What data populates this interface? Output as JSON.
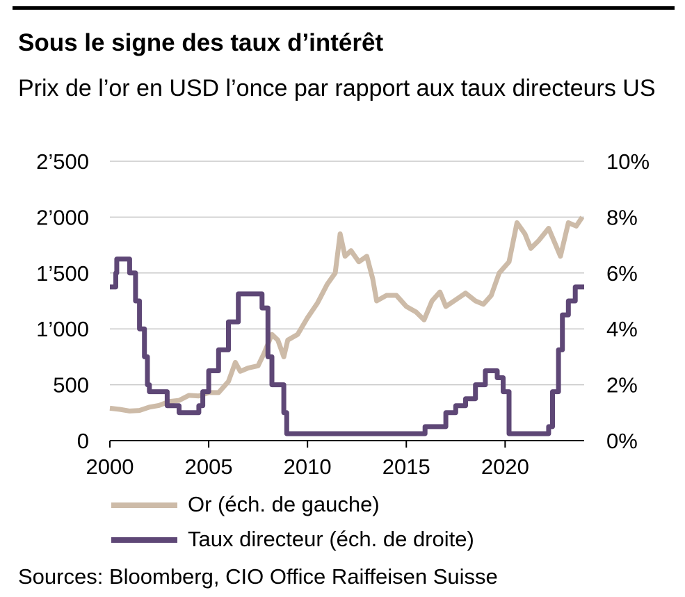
{
  "title": "Sous le signe des taux d’intérêt",
  "subtitle": "Prix de l’or en USD l’once par rapport aux taux directeurs US",
  "source": "Sources: Bloomberg, CIO Office Raiffeisen Suisse",
  "colors": {
    "gold": "#cdbba8",
    "rate": "#5e4776",
    "grid": "#c8c8c8"
  },
  "chart_data": {
    "type": "line",
    "xlim": [
      2000,
      2024
    ],
    "x_ticks": [
      "2000",
      "2005",
      "2010",
      "2015",
      "2020"
    ],
    "y_left": {
      "lim": [
        0,
        2500
      ],
      "ticks": [
        "0",
        "500",
        "1’000",
        "1’500",
        "2’000",
        "2’500"
      ]
    },
    "y_right": {
      "lim": [
        0,
        10
      ],
      "ticks": [
        "0%",
        "2%",
        "4%",
        "6%",
        "8%",
        "10%"
      ]
    },
    "grid": true,
    "legend_position": "bottom",
    "series": [
      {
        "name": "Or (éch. de gauche)",
        "axis": "left",
        "step": false,
        "points": [
          [
            2000.0,
            290
          ],
          [
            2000.5,
            280
          ],
          [
            2001.0,
            265
          ],
          [
            2001.5,
            270
          ],
          [
            2002.0,
            300
          ],
          [
            2002.5,
            315
          ],
          [
            2003.0,
            350
          ],
          [
            2003.5,
            360
          ],
          [
            2004.0,
            405
          ],
          [
            2004.5,
            400
          ],
          [
            2005.0,
            430
          ],
          [
            2005.5,
            430
          ],
          [
            2006.0,
            530
          ],
          [
            2006.35,
            700
          ],
          [
            2006.6,
            620
          ],
          [
            2007.0,
            650
          ],
          [
            2007.5,
            670
          ],
          [
            2007.8,
            780
          ],
          [
            2008.2,
            950
          ],
          [
            2008.5,
            900
          ],
          [
            2008.8,
            750
          ],
          [
            2009.0,
            900
          ],
          [
            2009.5,
            950
          ],
          [
            2010.0,
            1100
          ],
          [
            2010.5,
            1230
          ],
          [
            2011.0,
            1400
          ],
          [
            2011.4,
            1500
          ],
          [
            2011.65,
            1850
          ],
          [
            2011.9,
            1650
          ],
          [
            2012.2,
            1700
          ],
          [
            2012.6,
            1600
          ],
          [
            2013.0,
            1650
          ],
          [
            2013.3,
            1450
          ],
          [
            2013.5,
            1250
          ],
          [
            2014.0,
            1300
          ],
          [
            2014.5,
            1300
          ],
          [
            2015.0,
            1200
          ],
          [
            2015.5,
            1150
          ],
          [
            2015.9,
            1080
          ],
          [
            2016.3,
            1250
          ],
          [
            2016.7,
            1330
          ],
          [
            2017.0,
            1200
          ],
          [
            2017.5,
            1260
          ],
          [
            2018.0,
            1320
          ],
          [
            2018.5,
            1250
          ],
          [
            2018.9,
            1220
          ],
          [
            2019.3,
            1300
          ],
          [
            2019.7,
            1500
          ],
          [
            2020.2,
            1600
          ],
          [
            2020.6,
            1950
          ],
          [
            2021.0,
            1850
          ],
          [
            2021.3,
            1720
          ],
          [
            2021.7,
            1790
          ],
          [
            2022.2,
            1900
          ],
          [
            2022.8,
            1650
          ],
          [
            2023.2,
            1950
          ],
          [
            2023.6,
            1920
          ],
          [
            2023.9,
            2000
          ]
        ]
      },
      {
        "name": "Taux directeur (éch. de droite)",
        "axis": "right",
        "step": true,
        "points": [
          [
            2000.0,
            5.5
          ],
          [
            2000.3,
            6.0
          ],
          [
            2000.35,
            6.5
          ],
          [
            2001.0,
            6.0
          ],
          [
            2001.3,
            5.0
          ],
          [
            2001.5,
            4.0
          ],
          [
            2001.75,
            3.0
          ],
          [
            2001.9,
            2.0
          ],
          [
            2002.0,
            1.75
          ],
          [
            2002.9,
            1.25
          ],
          [
            2003.5,
            1.0
          ],
          [
            2004.5,
            1.25
          ],
          [
            2004.7,
            1.75
          ],
          [
            2005.0,
            2.5
          ],
          [
            2005.5,
            3.25
          ],
          [
            2006.0,
            4.25
          ],
          [
            2006.5,
            5.25
          ],
          [
            2007.7,
            4.75
          ],
          [
            2008.0,
            3.0
          ],
          [
            2008.2,
            2.0
          ],
          [
            2008.8,
            1.0
          ],
          [
            2008.95,
            0.25
          ],
          [
            2015.95,
            0.5
          ],
          [
            2017.0,
            1.0
          ],
          [
            2017.5,
            1.25
          ],
          [
            2018.0,
            1.5
          ],
          [
            2018.5,
            2.0
          ],
          [
            2019.0,
            2.5
          ],
          [
            2019.6,
            2.25
          ],
          [
            2019.9,
            1.75
          ],
          [
            2020.2,
            0.25
          ],
          [
            2022.2,
            0.5
          ],
          [
            2022.4,
            1.75
          ],
          [
            2022.7,
            3.25
          ],
          [
            2022.9,
            4.5
          ],
          [
            2023.2,
            5.0
          ],
          [
            2023.55,
            5.5
          ],
          [
            2024.0,
            5.5
          ]
        ]
      }
    ]
  }
}
